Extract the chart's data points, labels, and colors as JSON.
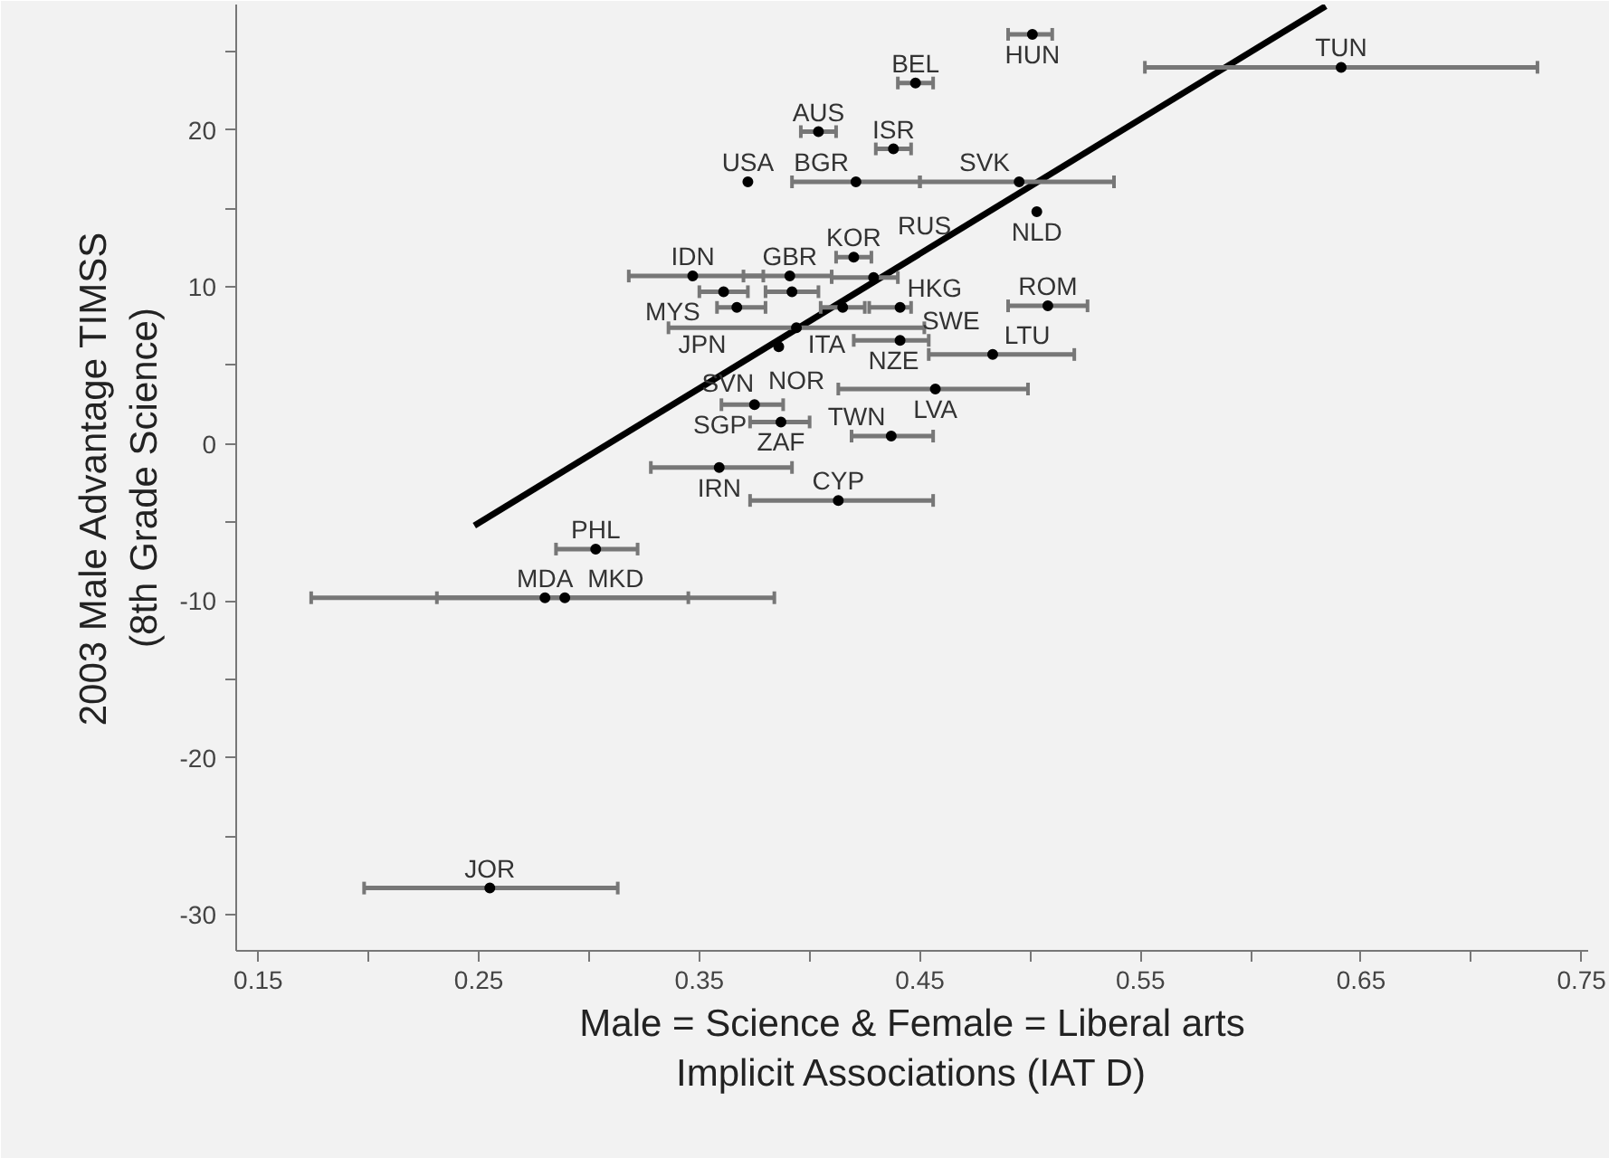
{
  "chart_data": {
    "type": "scatter",
    "xlabel": "Male = Science & Female = Liberal arts\nImplicit Associations (IAT D)",
    "ylabel": "2003 Male Advantage TIMSS\n(8th Grade Science)",
    "xlim": [
      0.14,
      0.753
    ],
    "ylim": [
      -32.3,
      28
    ],
    "xticks": [
      0.15,
      {
        "value": 0.2,
        "label": null
      },
      0.25,
      {
        "value": 0.3,
        "label": null
      },
      0.35,
      {
        "value": 0.4,
        "label": null
      },
      0.45,
      {
        "value": 0.5,
        "label": null
      },
      0.55,
      {
        "value": 0.6,
        "label": null
      },
      0.65,
      {
        "value": 0.7,
        "label": null
      },
      0.75
    ],
    "yticks": [
      -30,
      {
        "value": -25,
        "label": null
      },
      -20,
      {
        "value": -15,
        "label": null
      },
      -10,
      {
        "value": -5,
        "label": null
      },
      0,
      {
        "value": 5,
        "label": null
      },
      10,
      {
        "value": 15,
        "label": null
      },
      20,
      {
        "value": 25,
        "label": null
      }
    ],
    "grid": false,
    "marker": "circle",
    "series": [
      {
        "color": "#000000",
        "x": [
          0.501,
          0.448,
          0.641,
          0.404,
          0.438,
          0.372,
          0.421,
          0.495,
          0.503,
          0.42,
          0.347,
          0.391,
          0.429,
          0.361,
          0.392,
          0.415,
          0.441,
          0.367,
          0.394,
          0.386,
          0.441,
          0.483,
          0.457,
          0.375,
          0.387,
          0.437,
          0.359,
          0.413,
          0.303,
          0.28,
          0.289,
          0.255,
          0.508
        ],
        "values": [
          26.1,
          23.0,
          24.0,
          19.9,
          18.8,
          16.7,
          16.7,
          16.7,
          14.8,
          11.9,
          10.7,
          10.7,
          10.6,
          9.7,
          9.7,
          8.7,
          8.7,
          8.7,
          7.4,
          6.2,
          6.6,
          5.7,
          3.5,
          2.5,
          1.4,
          0.5,
          -1.5,
          -3.6,
          -6.7,
          -9.8,
          -9.8,
          -28.3,
          8.8
        ],
        "xerrors": [
          [
            0.49,
            0.51
          ],
          [
            0.44,
            0.456
          ],
          [
            0.552,
            0.73
          ],
          [
            0.396,
            0.412
          ],
          [
            0.43,
            0.446
          ],
          null,
          [
            0.392,
            0.45
          ],
          [
            0.45,
            0.538
          ],
          null,
          [
            0.412,
            0.428
          ],
          [
            0.318,
            0.379
          ],
          [
            0.37,
            0.41
          ],
          [
            0.41,
            0.44
          ],
          [
            0.35,
            0.372
          ],
          [
            0.38,
            0.404
          ],
          [
            0.405,
            0.425
          ],
          [
            0.427,
            0.446
          ],
          [
            0.358,
            0.38
          ],
          [
            0.336,
            0.452
          ],
          null,
          [
            0.42,
            0.454
          ],
          [
            0.454,
            0.52
          ],
          [
            0.413,
            0.499
          ],
          [
            0.36,
            0.388
          ],
          [
            0.373,
            0.4
          ],
          [
            0.419,
            0.456
          ],
          [
            0.328,
            0.392
          ],
          [
            0.373,
            0.456
          ],
          [
            0.285,
            0.322
          ],
          [
            0.174,
            0.345
          ],
          [
            0.231,
            0.384
          ],
          [
            0.198,
            0.313
          ],
          [
            0.49,
            0.526
          ]
        ]
      },
      {
        "type": "line",
        "marker": "none",
        "color": "#000000",
        "x": [
          0.248,
          0.634
        ],
        "values": [
          -5.2,
          27.9
        ]
      }
    ],
    "annotations": [
      {
        "text": "HUN",
        "x": 0.501,
        "y": 26.1
      },
      {
        "text": "BEL",
        "x": 0.448,
        "y": 23.0
      },
      {
        "text": "TUN",
        "x": 0.641,
        "y": 24.0
      },
      {
        "text": "AUS",
        "x": 0.404,
        "y": 19.9
      },
      {
        "text": "ISR",
        "x": 0.438,
        "y": 18.8
      },
      {
        "text": "USA",
        "x": 0.372,
        "y": 16.7
      },
      {
        "text": "BGR",
        "x": 0.421,
        "y": 16.7
      },
      {
        "text": "SVK",
        "x": 0.495,
        "y": 16.7
      },
      {
        "text": "NLD",
        "x": 0.503,
        "y": 14.8
      },
      {
        "text": "KOR",
        "x": 0.42,
        "y": 11.9
      },
      {
        "text": "IDN",
        "x": 0.347,
        "y": 10.7
      },
      {
        "text": "GBR",
        "x": 0.391,
        "y": 10.7
      },
      {
        "text": "RUS",
        "x": 0.429,
        "y": 10.6
      },
      {
        "text": "MYS",
        "x": 0.361,
        "y": 9.7
      },
      {
        "text": "ITA",
        "x": 0.392,
        "y": 9.7
      },
      {
        "text": "NZE",
        "x": 0.415,
        "y": 8.7
      },
      {
        "text": "HKG",
        "x": 0.441,
        "y": 8.7
      },
      {
        "text": "JPN",
        "x": 0.367,
        "y": 8.7
      },
      {
        "text": "NOR",
        "x": 0.394,
        "y": 7.4
      },
      {
        "text": "SVN",
        "x": 0.386,
        "y": 6.2
      },
      {
        "text": "SWE",
        "x": 0.441,
        "y": 6.6
      },
      {
        "text": "LTU",
        "x": 0.483,
        "y": 5.7
      },
      {
        "text": "LVA",
        "x": 0.457,
        "y": 3.5
      },
      {
        "text": "SGP",
        "x": 0.375,
        "y": 2.5
      },
      {
        "text": "ZAF",
        "x": 0.387,
        "y": 1.4
      },
      {
        "text": "TWN",
        "x": 0.437,
        "y": 0.5
      },
      {
        "text": "IRN",
        "x": 0.359,
        "y": -1.5
      },
      {
        "text": "CYP",
        "x": 0.413,
        "y": -3.6
      },
      {
        "text": "PHL",
        "x": 0.303,
        "y": -6.7
      },
      {
        "text": "MDA",
        "x": 0.28,
        "y": -9.8
      },
      {
        "text": "MKD",
        "x": 0.289,
        "y": -9.8
      },
      {
        "text": "JOR",
        "x": 0.255,
        "y": -28.3
      },
      {
        "text": "ROM",
        "x": 0.508,
        "y": 8.8
      }
    ]
  }
}
